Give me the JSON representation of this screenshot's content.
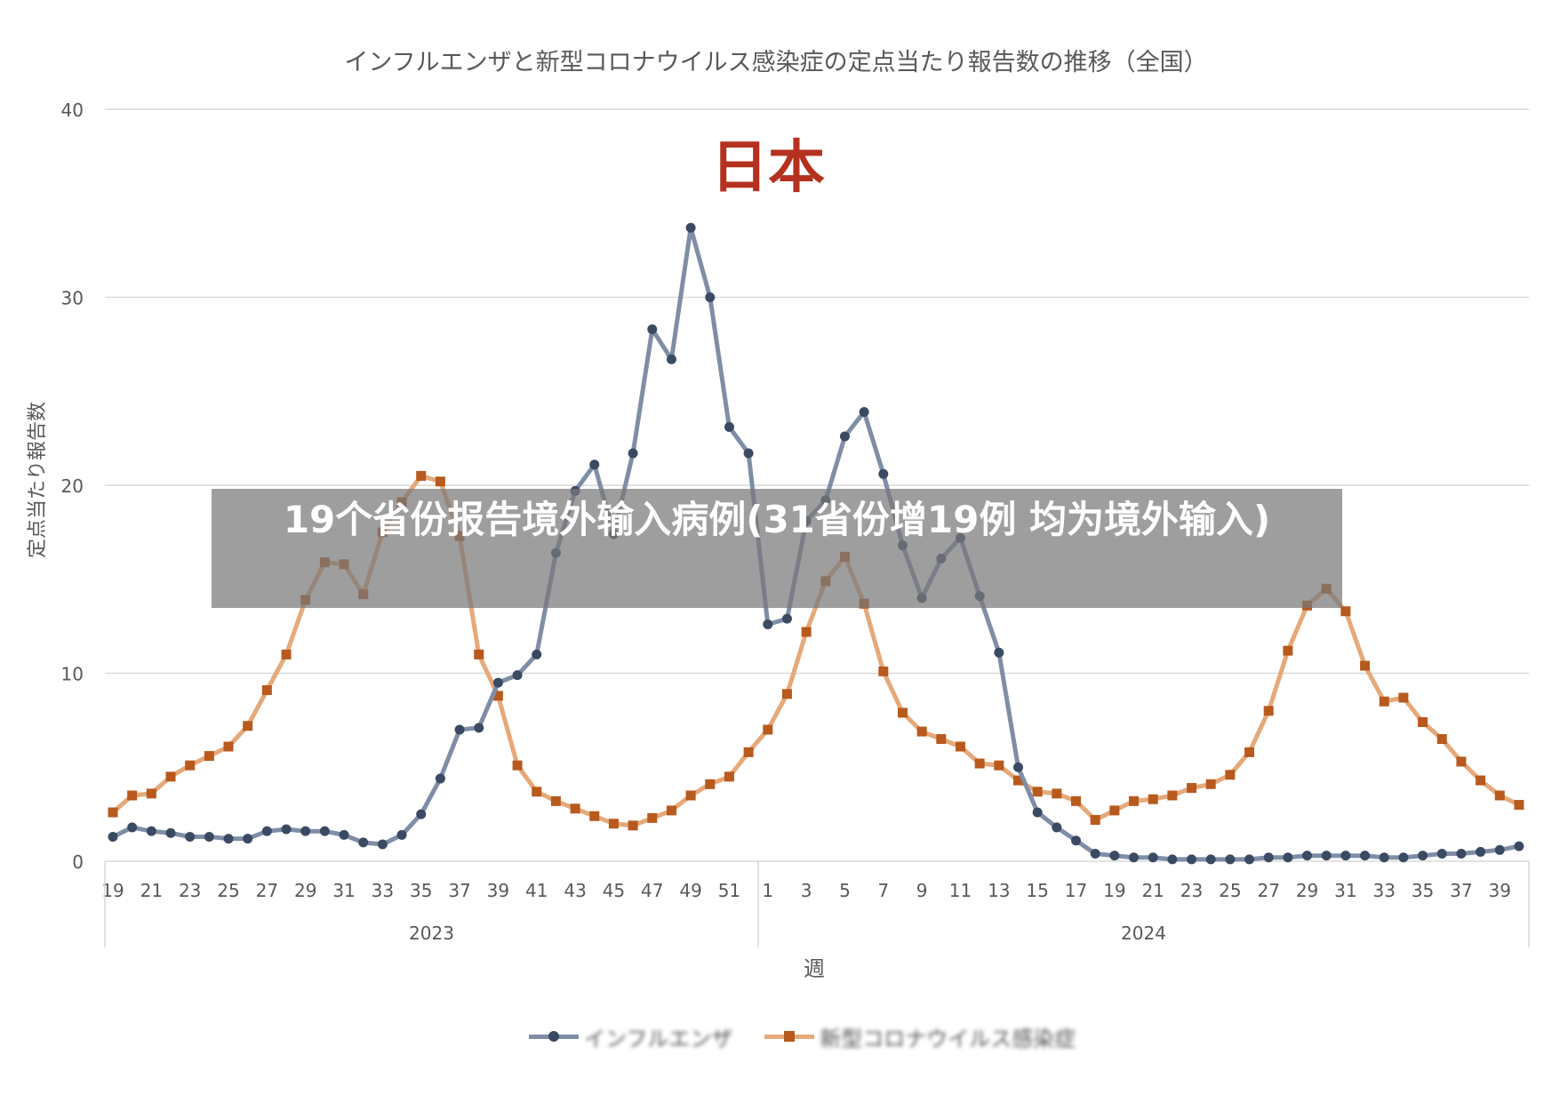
{
  "chart_data": {
    "type": "line",
    "title": "インフルエンザと新型コロナウイルス感染症の定点当たり報告数の推移（全国）",
    "ylabel": "定点当たり報告数",
    "xlabel": "週",
    "ylim": [
      0,
      40
    ],
    "yticks": [
      0,
      10,
      20,
      30,
      40
    ],
    "grid": true,
    "legend_position": "bottom",
    "year_groups": [
      {
        "label": "2023",
        "weeks": [
          19,
          52
        ]
      },
      {
        "label": "2024",
        "weeks": [
          1,
          40
        ]
      }
    ],
    "x_tick_labels": [
      "19",
      "21",
      "23",
      "25",
      "27",
      "29",
      "31",
      "33",
      "35",
      "37",
      "39",
      "41",
      "43",
      "45",
      "47",
      "49",
      "51",
      "1",
      "3",
      "5",
      "7",
      "9",
      "11",
      "13",
      "15",
      "17",
      "19",
      "21",
      "23",
      "25",
      "27",
      "29",
      "31",
      "33",
      "35",
      "37",
      "39"
    ],
    "x": [
      "2023-19",
      "2023-20",
      "2023-21",
      "2023-22",
      "2023-23",
      "2023-24",
      "2023-25",
      "2023-26",
      "2023-27",
      "2023-28",
      "2023-29",
      "2023-30",
      "2023-31",
      "2023-32",
      "2023-33",
      "2023-34",
      "2023-35",
      "2023-36",
      "2023-37",
      "2023-38",
      "2023-39",
      "2023-40",
      "2023-41",
      "2023-42",
      "2023-43",
      "2023-44",
      "2023-45",
      "2023-46",
      "2023-47",
      "2023-48",
      "2023-49",
      "2023-50",
      "2023-51",
      "2023-52",
      "2024-1",
      "2024-2",
      "2024-3",
      "2024-4",
      "2024-5",
      "2024-6",
      "2024-7",
      "2024-8",
      "2024-9",
      "2024-10",
      "2024-11",
      "2024-12",
      "2024-13",
      "2024-14",
      "2024-15",
      "2024-16",
      "2024-17",
      "2024-18",
      "2024-19",
      "2024-20",
      "2024-21",
      "2024-22",
      "2024-23",
      "2024-24",
      "2024-25",
      "2024-26",
      "2024-27",
      "2024-28",
      "2024-29",
      "2024-30",
      "2024-31",
      "2024-32",
      "2024-33",
      "2024-34",
      "2024-35",
      "2024-36",
      "2024-37",
      "2024-38",
      "2024-39",
      "2024-40"
    ],
    "series": [
      {
        "name": "インフルエンザ",
        "color": "#7f8ea6",
        "marker": "circle",
        "values": [
          1.3,
          1.8,
          1.6,
          1.5,
          1.3,
          1.3,
          1.2,
          1.2,
          1.6,
          1.7,
          1.6,
          1.6,
          1.4,
          1.0,
          0.9,
          1.4,
          2.5,
          4.4,
          7.0,
          7.1,
          9.5,
          9.9,
          11.0,
          16.4,
          19.7,
          21.1,
          17.4,
          21.7,
          28.3,
          26.7,
          33.7,
          30.0,
          23.1,
          21.7,
          12.6,
          12.9,
          18.1,
          19.2,
          22.6,
          23.9,
          20.6,
          16.8,
          14.0,
          16.1,
          17.2,
          14.1,
          11.1,
          5.0,
          2.6,
          1.8,
          1.1,
          0.4,
          0.3,
          0.2,
          0.2,
          0.1,
          0.1,
          0.1,
          0.1,
          0.1,
          0.2,
          0.2,
          0.3,
          0.3,
          0.3,
          0.3,
          0.2,
          0.2,
          0.3,
          0.4,
          0.4,
          0.5,
          0.6,
          0.8
        ]
      },
      {
        "name": "新型コロナウイルス感染症",
        "color": "#e6a97a",
        "marker": "square",
        "values": [
          2.6,
          3.5,
          3.6,
          4.5,
          5.1,
          5.6,
          6.1,
          7.2,
          9.1,
          11.0,
          13.9,
          15.9,
          15.8,
          14.2,
          17.5,
          19.1,
          20.5,
          20.2,
          17.3,
          11.0,
          8.8,
          5.1,
          3.7,
          3.2,
          2.8,
          2.4,
          2.0,
          1.9,
          2.3,
          2.7,
          3.5,
          4.1,
          4.5,
          5.8,
          7.0,
          8.9,
          12.2,
          14.9,
          16.2,
          13.7,
          10.1,
          7.9,
          6.9,
          6.5,
          6.1,
          5.2,
          5.1,
          4.3,
          3.7,
          3.6,
          3.2,
          2.2,
          2.7,
          3.2,
          3.3,
          3.5,
          3.9,
          4.1,
          4.6,
          5.8,
          8.0,
          11.2,
          13.6,
          14.5,
          13.3,
          10.4,
          8.5,
          8.7,
          7.4,
          6.5,
          5.3,
          4.3,
          3.5,
          3.0
        ]
      }
    ]
  },
  "overlays": {
    "stamp_text": "日本",
    "banner_text": "19个省份报告境外输入病例(31省份增19例 均为境外输入)"
  },
  "legend": {
    "items": [
      "インフルエンザ",
      "新型コロナウイルス感染症"
    ]
  },
  "colors": {
    "flu_marker": "#3b4a63",
    "covid_marker": "#b85a1e",
    "stamp": "#b5311f"
  }
}
